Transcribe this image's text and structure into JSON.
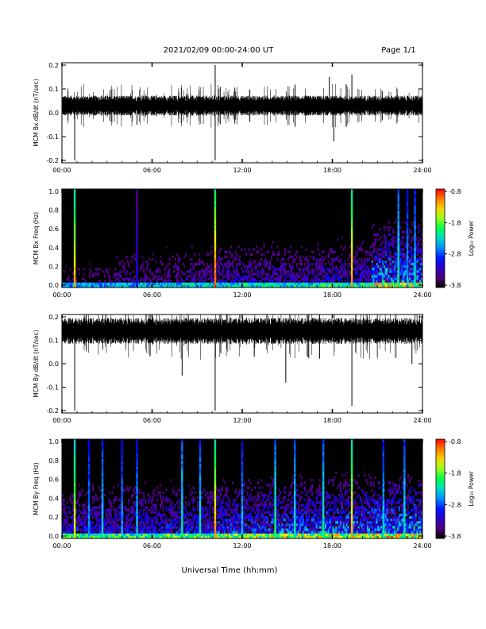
{
  "header": {
    "date_range": "2021/02/09  00:00-24:00 UT",
    "page": "Page 1/1"
  },
  "x_axis": {
    "title": "Universal Time (hh:mm)",
    "tick_labels": [
      "00:00",
      "06:00",
      "12:00",
      "18:00",
      "24:00"
    ]
  },
  "chart_data": [
    {
      "type": "line",
      "ylabel": "MCM Bx dB/dt (nT/sec)",
      "x_range_hours": [
        0,
        24
      ],
      "ylim": [
        -0.2,
        0.2
      ],
      "yticks": [
        "0.2",
        "0.1",
        "0.0",
        "-0.1",
        "-0.2"
      ],
      "baseline": 0.03,
      "noise_amplitude": 0.03,
      "series": [
        {
          "x_hours": [
            0.0,
            3.0,
            6.0,
            9.0,
            12.0,
            15.0,
            18.0,
            21.0,
            24.0
          ],
          "y": [
            0.03,
            0.03,
            0.03,
            0.03,
            0.03,
            0.03,
            0.03,
            0.03,
            0.03
          ]
        }
      ],
      "spikes": [
        {
          "x": 0.85,
          "y": -0.2
        },
        {
          "x": 10.2,
          "y": -0.2
        },
        {
          "x": 10.2,
          "y": 0.2
        },
        {
          "x": 18.1,
          "y": -0.12
        },
        {
          "x": 19.3,
          "y": 0.16
        },
        {
          "x": 5.0,
          "y": -0.05
        },
        {
          "x": 17.8,
          "y": 0.15
        }
      ]
    },
    {
      "type": "heatmap",
      "ylabel": "MCM Bx Freq (Hz)",
      "x_range_hours": [
        0,
        24
      ],
      "ylim": [
        0,
        1.0
      ],
      "yticks": [
        "1.0",
        "0.8",
        "0.6",
        "0.4",
        "0.2",
        "0.0"
      ],
      "colorbar": {
        "label": "Log₁₀ Power",
        "ticks": [
          "-0.8",
          "-1.8",
          "-2.8",
          "-3.8"
        ],
        "range": [
          -3.8,
          -0.8
        ]
      },
      "events": [
        {
          "x": 0.85,
          "level": -1.3
        },
        {
          "x": 5.0,
          "level": -3.2
        },
        {
          "x": 10.2,
          "level": -1.0
        },
        {
          "x": 19.3,
          "level": -1.2
        },
        {
          "x": 22.4,
          "level": -2.2
        },
        {
          "x": 23.0,
          "level": -2.6
        },
        {
          "x": 23.5,
          "level": -2.4
        }
      ],
      "activity_level": [
        0.35,
        0.4,
        0.45,
        0.5,
        0.5,
        0.55,
        0.85
      ]
    },
    {
      "type": "line",
      "ylabel": "MCM By dB/dt (nT/sec)",
      "x_range_hours": [
        0,
        24
      ],
      "ylim": [
        -0.2,
        0.2
      ],
      "yticks": [
        "0.2",
        "0.1",
        "0.0",
        "-0.1",
        "-0.2"
      ],
      "baseline": 0.14,
      "noise_amplitude": 0.04,
      "series": [
        {
          "x_hours": [
            0.0,
            3.0,
            6.0,
            9.0,
            12.0,
            15.0,
            18.0,
            21.0,
            24.0
          ],
          "y": [
            0.14,
            0.14,
            0.13,
            0.14,
            0.14,
            0.14,
            0.14,
            0.14,
            0.14
          ]
        }
      ],
      "spikes": [
        {
          "x": 0.85,
          "y": -0.2
        },
        {
          "x": 10.2,
          "y": -0.2
        },
        {
          "x": 8.0,
          "y": -0.05
        },
        {
          "x": 14.9,
          "y": -0.08
        },
        {
          "x": 19.3,
          "y": -0.18
        },
        {
          "x": 12.8,
          "y": 0.03
        },
        {
          "x": 23.3,
          "y": 0.0
        }
      ]
    },
    {
      "type": "heatmap",
      "ylabel": "MCM By Freq (Hz)",
      "x_range_hours": [
        0,
        24
      ],
      "ylim": [
        0,
        1.0
      ],
      "yticks": [
        "1.0",
        "0.8",
        "0.6",
        "0.4",
        "0.2",
        "0.0"
      ],
      "colorbar": {
        "label": "Log₁₀ Power",
        "ticks": [
          "-0.8",
          "-1.8",
          "-2.8",
          "-3.8"
        ],
        "range": [
          -3.8,
          -0.8
        ]
      },
      "events": [
        {
          "x": 0.85,
          "level": -1.5
        },
        {
          "x": 1.8,
          "level": -2.6
        },
        {
          "x": 2.7,
          "level": -2.4
        },
        {
          "x": 4.0,
          "level": -2.6
        },
        {
          "x": 5.0,
          "level": -2.5
        },
        {
          "x": 8.0,
          "level": -2.2
        },
        {
          "x": 9.2,
          "level": -2.3
        },
        {
          "x": 10.2,
          "level": -1.2
        },
        {
          "x": 12.0,
          "level": -2.5
        },
        {
          "x": 14.2,
          "level": -2.1
        },
        {
          "x": 15.5,
          "level": -2.3
        },
        {
          "x": 17.4,
          "level": -2.2
        },
        {
          "x": 19.3,
          "level": -1.3
        },
        {
          "x": 21.4,
          "level": -2.4
        },
        {
          "x": 22.8,
          "level": -2.3
        }
      ],
      "activity_level": [
        0.6,
        0.6,
        0.65,
        0.7,
        0.75,
        0.8,
        0.85
      ]
    }
  ]
}
